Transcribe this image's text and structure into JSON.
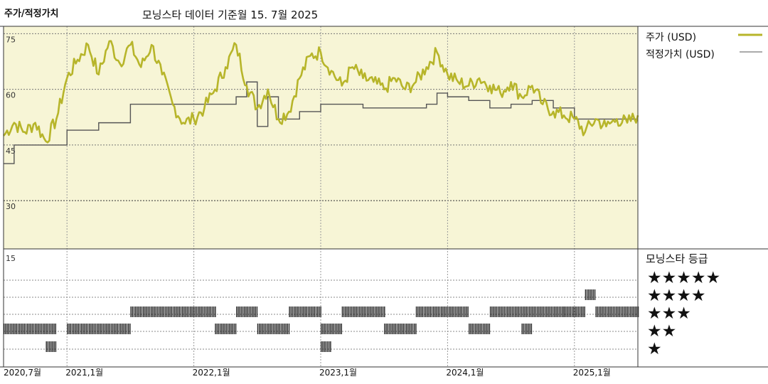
{
  "header": {
    "title": "주가/적정가치",
    "subtitle": "모닝스타 데이터 기준월 15. 7월 2025"
  },
  "legend": {
    "price_label": "주가 (USD)",
    "fair_label": "적정가치 (USD)",
    "price_color": "#b7b52a",
    "fair_color": "#555555"
  },
  "stars": {
    "title": "모닝스타 등급",
    "rows": [
      "★★★★★",
      "★★★★",
      "★★★",
      "★★",
      "★"
    ]
  },
  "chart_data": [
    {
      "type": "line",
      "x_start": "2020-07",
      "x_end": "2025-07",
      "yticks": [
        75,
        60,
        45,
        30
      ],
      "ylim": [
        17,
        77
      ],
      "xtick_labels": [
        "2020,7월",
        "2021,1월",
        "2022,1월",
        "2023,1월",
        "2024,1월",
        "2025,1월"
      ],
      "grid": true,
      "background": "#f7f5d6",
      "series": [
        {
          "name": "주가 (USD)",
          "points": [
            [
              "2020-07",
              47.5
            ],
            [
              "2020-08",
              51
            ],
            [
              "2020-09",
              48.5
            ],
            [
              "2020-10",
              51
            ],
            [
              "2020-11",
              46
            ],
            [
              "2020-12",
              52
            ],
            [
              "2021-01",
              63
            ],
            [
              "2021-02",
              68
            ],
            [
              "2021-03",
              72
            ],
            [
              "2021-04",
              64
            ],
            [
              "2021-05",
              73
            ],
            [
              "2021-06",
              67
            ],
            [
              "2021-07",
              72
            ],
            [
              "2021-08",
              66
            ],
            [
              "2021-09",
              72
            ],
            [
              "2021-10",
              64
            ],
            [
              "2021-11",
              56
            ],
            [
              "2021-12",
              51
            ],
            [
              "2022-01",
              52
            ],
            [
              "2022-02",
              55
            ],
            [
              "2022-03",
              60
            ],
            [
              "2022-04",
              66
            ],
            [
              "2022-05",
              72
            ],
            [
              "2022-06",
              61
            ],
            [
              "2022-07",
              55
            ],
            [
              "2022-08",
              60
            ],
            [
              "2022-09",
              52
            ],
            [
              "2022-10",
              54
            ],
            [
              "2022-11",
              63
            ],
            [
              "2022-12",
              69
            ],
            [
              "2023-01",
              70
            ],
            [
              "2023-02",
              65
            ],
            [
              "2023-03",
              61
            ],
            [
              "2023-04",
              66
            ],
            [
              "2023-05",
              63
            ],
            [
              "2023-06",
              62
            ],
            [
              "2023-07",
              60
            ],
            [
              "2023-08",
              63
            ],
            [
              "2023-09",
              60
            ],
            [
              "2023-10",
              62
            ],
            [
              "2023-11",
              66
            ],
            [
              "2023-12",
              70
            ],
            [
              "2024-01",
              64
            ],
            [
              "2024-02",
              62
            ],
            [
              "2024-03",
              61
            ],
            [
              "2024-04",
              63
            ],
            [
              "2024-05",
              61
            ],
            [
              "2024-06",
              59
            ],
            [
              "2024-07",
              62
            ],
            [
              "2024-08",
              58
            ],
            [
              "2024-09",
              61
            ],
            [
              "2024-10",
              56
            ],
            [
              "2024-11",
              54
            ],
            [
              "2024-12",
              53
            ],
            [
              "2025-01",
              52
            ],
            [
              "2025-02",
              48.5
            ],
            [
              "2025-03",
              52
            ],
            [
              "2025-04",
              50
            ],
            [
              "2025-05",
              52
            ],
            [
              "2025-06",
              51
            ],
            [
              "2025-07",
              53
            ]
          ]
        },
        {
          "name": "적정가치 (USD)",
          "points": [
            [
              "2020-07",
              40
            ],
            [
              "2020-08",
              45
            ],
            [
              "2020-11",
              45
            ],
            [
              "2021-01",
              49
            ],
            [
              "2021-04",
              51
            ],
            [
              "2021-07",
              56
            ],
            [
              "2021-10",
              56
            ],
            [
              "2022-01",
              56
            ],
            [
              "2022-03",
              56
            ],
            [
              "2022-05",
              58
            ],
            [
              "2022-06",
              62
            ],
            [
              "2022-07",
              50
            ],
            [
              "2022-08",
              58
            ],
            [
              "2022-09",
              52
            ],
            [
              "2022-11",
              54
            ],
            [
              "2023-01",
              56
            ],
            [
              "2023-03",
              56
            ],
            [
              "2023-05",
              55
            ],
            [
              "2023-08",
              55
            ],
            [
              "2023-11",
              56
            ],
            [
              "2023-12",
              59
            ],
            [
              "2024-01",
              58
            ],
            [
              "2024-03",
              57
            ],
            [
              "2024-05",
              55
            ],
            [
              "2024-07",
              56
            ],
            [
              "2024-09",
              57
            ],
            [
              "2024-11",
              55
            ],
            [
              "2025-01",
              52
            ],
            [
              "2025-07",
              52
            ]
          ]
        }
      ]
    },
    {
      "type": "heatmap",
      "title": "모닝스타 등급",
      "rating_ticks": [
        15
      ],
      "rating_history": [
        {
          "from": "2020-07",
          "to": "2020-12",
          "stars": 2
        },
        {
          "from": "2020-11",
          "to": "2020-12",
          "stars": 1
        },
        {
          "from": "2021-01",
          "to": "2021-07",
          "stars": 2
        },
        {
          "from": "2021-07",
          "to": "2022-03",
          "stars": 3
        },
        {
          "from": "2022-03",
          "to": "2022-05",
          "stars": 2
        },
        {
          "from": "2022-05",
          "to": "2022-07",
          "stars": 3
        },
        {
          "from": "2022-07",
          "to": "2022-10",
          "stars": 2
        },
        {
          "from": "2022-10",
          "to": "2023-01",
          "stars": 3
        },
        {
          "from": "2023-01",
          "to": "2023-03",
          "stars": 2
        },
        {
          "from": "2023-01",
          "to": "2023-02",
          "stars": 1
        },
        {
          "from": "2023-03",
          "to": "2023-07",
          "stars": 3
        },
        {
          "from": "2023-07",
          "to": "2023-10",
          "stars": 2
        },
        {
          "from": "2023-10",
          "to": "2024-03",
          "stars": 3
        },
        {
          "from": "2024-03",
          "to": "2024-05",
          "stars": 2
        },
        {
          "from": "2024-05",
          "to": "2024-12",
          "stars": 3
        },
        {
          "from": "2024-08",
          "to": "2024-09",
          "stars": 2
        },
        {
          "from": "2024-12",
          "to": "2025-02",
          "stars": 3
        },
        {
          "from": "2025-02",
          "to": "2025-03",
          "stars": 4
        },
        {
          "from": "2025-03",
          "to": "2025-07",
          "stars": 3
        }
      ]
    }
  ]
}
